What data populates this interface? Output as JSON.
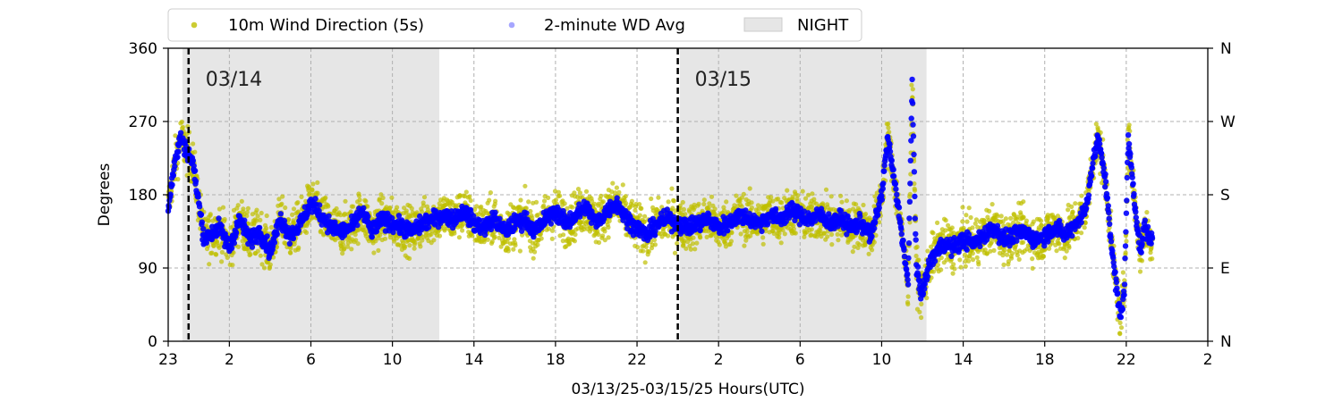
{
  "chart_data": {
    "type": "scatter",
    "xlabel": "03/13/25-03/15/25  Hours(UTC)",
    "ylabel": "Degrees",
    "x_range_hours": [
      0,
      51
    ],
    "x_tick_hours": [
      0,
      3,
      7,
      11,
      15,
      19,
      23,
      27,
      31,
      35,
      39,
      43,
      47,
      51
    ],
    "x_tick_labels": [
      "23",
      "2",
      "6",
      "10",
      "14",
      "18",
      "22",
      "2",
      "6",
      "10",
      "14",
      "18",
      "22",
      "2"
    ],
    "ylim": [
      0,
      360
    ],
    "y_ticks": [
      0,
      90,
      180,
      270,
      360
    ],
    "y_tick_labels": [
      "0",
      "90",
      "180",
      "270",
      "360"
    ],
    "right_axis_labels": [
      "N",
      "E",
      "S",
      "W",
      "N"
    ],
    "grid": true,
    "legend_position": "top",
    "legend": [
      {
        "label": "10m Wind Direction (5s)",
        "color": "#bfbf00",
        "marker": "dot"
      },
      {
        "label": "2-minute WD Avg",
        "color": "#0000ff",
        "marker": "dot"
      },
      {
        "label": "NIGHT",
        "color": "#e6e6e6",
        "marker": "patch"
      }
    ],
    "night_periods_hours": [
      [
        0.7,
        13.3
      ],
      [
        25.1,
        37.2
      ]
    ],
    "day_boundaries": [
      {
        "hour": 1.0,
        "label": "03/14"
      },
      {
        "hour": 25.0,
        "label": "03/15"
      }
    ],
    "series": [
      {
        "name": "2-minute WD Avg",
        "color": "#0000ff",
        "x": [
          0,
          0.3,
          0.6,
          0.9,
          1.2,
          1.5,
          1.7,
          1.8,
          2.0,
          2.5,
          3.0,
          3.5,
          4.0,
          4.5,
          5.0,
          5.5,
          6.0,
          6.5,
          7.0,
          7.5,
          8.0,
          8.5,
          9.0,
          9.5,
          10.0,
          10.5,
          11.0,
          11.5,
          12.0,
          12.5,
          13.0,
          13.5,
          14.0,
          14.5,
          15.0,
          15.5,
          16.0,
          16.5,
          17.0,
          17.5,
          18.0,
          18.5,
          19.0,
          19.5,
          20.0,
          20.5,
          21.0,
          21.5,
          22.0,
          22.5,
          23.0,
          23.5,
          24.0,
          24.5,
          25.0,
          25.5,
          26.0,
          26.5,
          27.0,
          27.5,
          28.0,
          28.5,
          29.0,
          29.5,
          30.0,
          30.5,
          31.0,
          31.5,
          32.0,
          32.5,
          33.0,
          33.5,
          34.0,
          34.5,
          35.0,
          35.3,
          35.6,
          35.9,
          36.1,
          36.3,
          36.5,
          36.7,
          36.9,
          37.1,
          37.4,
          37.7,
          38.0,
          38.5,
          39.0,
          39.5,
          40.0,
          40.5,
          41.0,
          41.5,
          42.0,
          42.5,
          43.0,
          43.5,
          44.0,
          44.5,
          45.0,
          45.3,
          45.6,
          45.9,
          46.1,
          46.3,
          46.5,
          46.7,
          46.9,
          47.1,
          47.3,
          47.5,
          47.7,
          47.9,
          48.1,
          48.3
        ],
        "values": [
          165,
          215,
          250,
          235,
          220,
          170,
          135,
          125,
          130,
          140,
          115,
          150,
          125,
          135,
          110,
          150,
          130,
          145,
          170,
          155,
          140,
          135,
          140,
          160,
          135,
          150,
          145,
          140,
          135,
          145,
          150,
          155,
          150,
          160,
          145,
          140,
          150,
          135,
          145,
          150,
          135,
          150,
          160,
          145,
          155,
          165,
          145,
          160,
          170,
          150,
          140,
          130,
          145,
          150,
          145,
          140,
          145,
          150,
          140,
          145,
          155,
          150,
          145,
          155,
          150,
          160,
          155,
          150,
          155,
          145,
          150,
          140,
          145,
          130,
          180,
          250,
          200,
          150,
          110,
          70,
          320,
          90,
          60,
          70,
          100,
          110,
          120,
          115,
          125,
          120,
          130,
          140,
          125,
          130,
          135,
          125,
          130,
          140,
          130,
          145,
          160,
          210,
          250,
          210,
          170,
          110,
          70,
          30,
          60,
          250,
          200,
          150,
          110,
          140,
          130,
          120
        ]
      },
      {
        "name": "10m Wind Direction (5s)",
        "color": "#bfbf00",
        "spread_degrees": 28
      }
    ]
  }
}
